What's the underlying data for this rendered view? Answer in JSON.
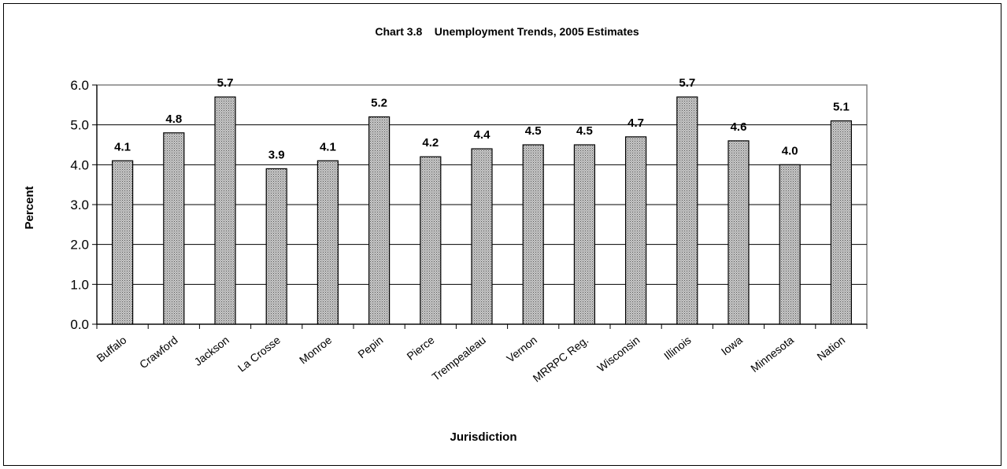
{
  "chart_data": {
    "type": "bar",
    "title": "Chart 3.8    Unemployment Trends, 2005 Estimates",
    "xlabel": "Jurisdiction",
    "ylabel": "Percent",
    "ylim": [
      0,
      6
    ],
    "yticks": [
      "0.0",
      "1.0",
      "2.0",
      "3.0",
      "4.0",
      "5.0",
      "6.0"
    ],
    "grid": true,
    "categories": [
      "Buffalo",
      "Crawford",
      "Jackson",
      "La Crosse",
      "Monroe",
      "Pepin",
      "Pierce",
      "Trempealeau",
      "Vernon",
      "MRRPC Reg.",
      "Wisconsin",
      "Illinois",
      "Iowa",
      "Minnesota",
      "Nation"
    ],
    "values": [
      4.1,
      4.8,
      5.7,
      3.9,
      4.1,
      5.2,
      4.2,
      4.4,
      4.5,
      4.5,
      4.7,
      5.7,
      4.6,
      4.0,
      5.1
    ],
    "value_labels": [
      "4.1",
      "4.8",
      "5.7",
      "3.9",
      "4.1",
      "5.2",
      "4.2",
      "4.4",
      "4.5",
      "4.5",
      "4.7",
      "5.7",
      "4.6",
      "4.0",
      "5.1"
    ],
    "bar_color": "#a9a9a9",
    "bar_border": "#000000",
    "highlight_label_color": "#1f3a66"
  }
}
